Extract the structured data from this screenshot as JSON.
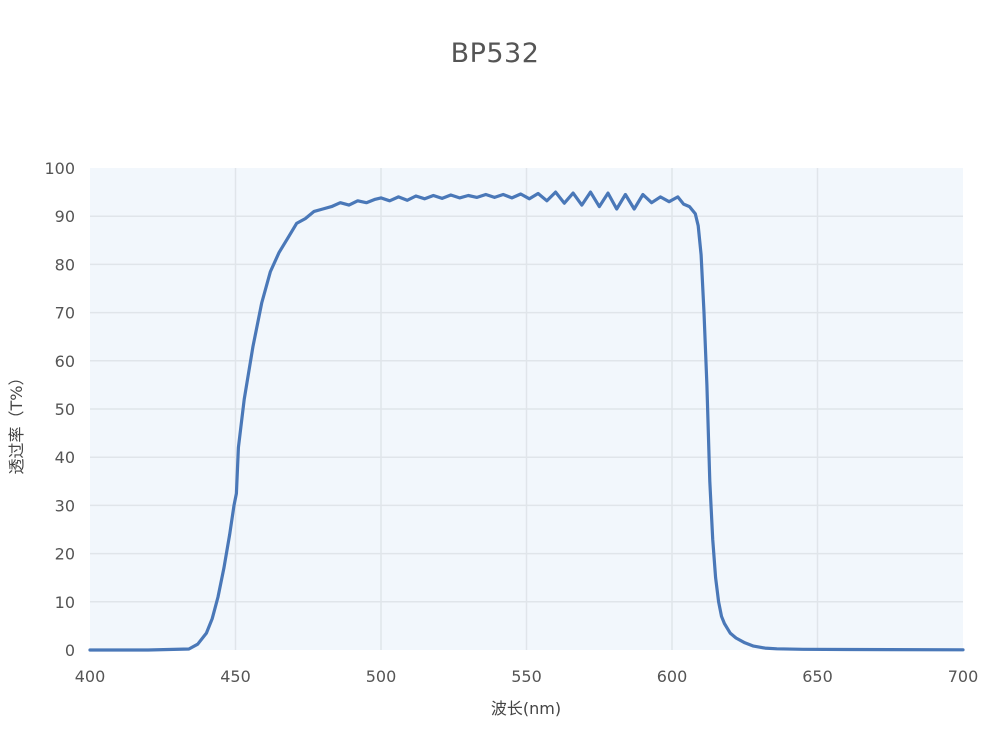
{
  "chart_data": {
    "type": "line",
    "title": "BP532",
    "xlabel": "波长(nm)",
    "ylabel": "透过率（T%）",
    "xlim": [
      400,
      700
    ],
    "ylim": [
      0,
      100
    ],
    "xticks": [
      400,
      450,
      500,
      550,
      600,
      650,
      700
    ],
    "yticks": [
      0,
      10,
      20,
      30,
      40,
      50,
      60,
      70,
      80,
      90,
      100
    ],
    "grid": true,
    "legend": null,
    "colors": {
      "line": "#4a78b8",
      "plot_bg": "#f2f7fc",
      "grid": "#e0e5ea"
    },
    "series": [
      {
        "name": "BP532",
        "x": [
          400,
          420,
          434,
          437,
          440,
          442,
          444,
          446,
          448,
          449.5,
          450.3,
          451,
          453,
          456,
          459,
          462,
          465,
          468,
          471,
          474,
          477,
          480,
          483,
          486,
          489,
          492,
          495,
          498,
          500,
          503,
          506,
          509,
          512,
          515,
          518,
          521,
          524,
          527,
          530,
          533,
          536,
          539,
          542,
          545,
          548,
          551,
          554,
          557,
          560,
          563,
          566,
          569,
          572,
          575,
          578,
          581,
          584,
          587,
          590,
          593,
          596,
          599,
          602,
          604,
          606,
          608,
          609,
          610,
          611,
          612,
          613,
          614,
          615,
          616,
          617,
          618,
          619,
          620,
          622,
          625,
          628,
          632,
          636,
          645,
          660,
          700
        ],
        "y": [
          0,
          0,
          0.2,
          1.2,
          3.5,
          6.5,
          11,
          17,
          24,
          30,
          32.5,
          42,
          52,
          63,
          72,
          78.5,
          82.5,
          85.5,
          88.5,
          89.5,
          91,
          91.5,
          92,
          92.8,
          92.3,
          93.2,
          92.8,
          93.5,
          93.8,
          93.2,
          94,
          93.3,
          94.2,
          93.6,
          94.3,
          93.7,
          94.4,
          93.8,
          94.3,
          93.9,
          94.5,
          93.9,
          94.5,
          93.8,
          94.6,
          93.6,
          94.7,
          93.2,
          95,
          92.7,
          94.8,
          92.3,
          95,
          92,
          94.8,
          91.5,
          94.5,
          91.5,
          94.5,
          92.8,
          94,
          93,
          94,
          92.5,
          92,
          90.5,
          88,
          82,
          70,
          55,
          35,
          23,
          15,
          10,
          7,
          5.5,
          4.5,
          3.5,
          2.5,
          1.5,
          0.8,
          0.4,
          0.25,
          0.15,
          0.1,
          0.05
        ]
      }
    ]
  }
}
